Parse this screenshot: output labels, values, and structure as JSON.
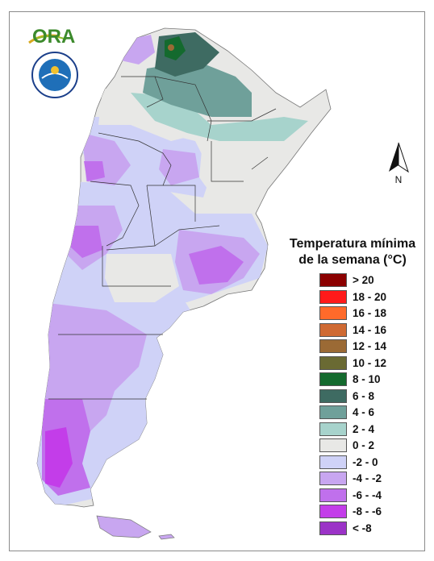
{
  "logo": {
    "brand": "ORA",
    "seal_text": "SERVICIO METEOROLÓGICO NACIONAL · ARGENTINA"
  },
  "north_arrow": {
    "label": "N"
  },
  "legend": {
    "title_line1": "Temperatura mínima",
    "title_line2": "de la semana (°C)",
    "classes": [
      {
        "label": "> 20",
        "color": "#8b0000"
      },
      {
        "label": "18 - 20",
        "color": "#ff1a1a"
      },
      {
        "label": "16 - 18",
        "color": "#ff6a2a"
      },
      {
        "label": "14 - 16",
        "color": "#cf6a33"
      },
      {
        "label": "12 - 14",
        "color": "#9b6a35"
      },
      {
        "label": "10 - 12",
        "color": "#6a6a33"
      },
      {
        "label": "8 - 10",
        "color": "#146a2e"
      },
      {
        "label": "6 - 8",
        "color": "#3e6b62"
      },
      {
        "label": "4 - 6",
        "color": "#6fa09a"
      },
      {
        "label": "2 - 4",
        "color": "#a7d3cc"
      },
      {
        "label": "0 - 2",
        "color": "#e8e8e6"
      },
      {
        "label": "-2 - 0",
        "color": "#cfd2f7"
      },
      {
        "label": "-4 - -2",
        "color": "#c8a6f0"
      },
      {
        "label": "-6 - -4",
        "color": "#c070ec"
      },
      {
        "label": "-8 - -6",
        "color": "#c33de9"
      },
      {
        "label": "< -8",
        "color": "#9b33c7"
      }
    ]
  }
}
